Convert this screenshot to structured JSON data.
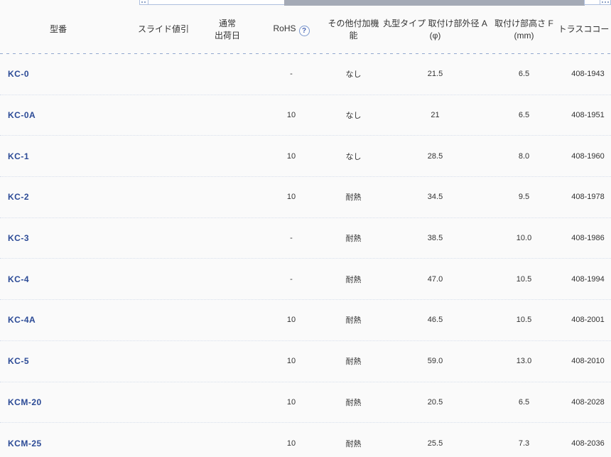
{
  "colors": {
    "background": "#fafafa",
    "model_link_blue": "#2b4a96",
    "header_text": "#333333",
    "cell_text": "#333333",
    "dashed_separator_blue": "#92a8ce",
    "scrollbar_thumb_gray": "#a4aab6",
    "scrollbar_border_blue": "#aebfde",
    "help_icon_blue": "#4a67b5"
  },
  "icons": {
    "rohs_help": "question-mark-circle",
    "left_grip": "grip-dots",
    "right_grip": "grip-dots"
  },
  "scrollbar": {
    "thumb_present": true
  },
  "table": {
    "headers": {
      "model": {
        "line1": "型番",
        "line2": ""
      },
      "slide_discount": {
        "line1": "スライド値引",
        "line2": ""
      },
      "ship_date": {
        "line1": "通常",
        "line2": "出荷日"
      },
      "rohs": {
        "line1": "RoHS",
        "help": "?"
      },
      "extra": {
        "line1": "その他付加機能",
        "line2": ""
      },
      "outer_dia": {
        "line1": "丸型タイプ 取付け部外径 A",
        "line2": "(φ)"
      },
      "mount_height": {
        "line1": "取付け部高さ F",
        "line2": "(mm)"
      },
      "trusco": {
        "line1": "トラスココード",
        "line2": ""
      }
    },
    "rows": [
      {
        "model": "KC-0",
        "slide_discount": "",
        "ship_date": "",
        "rohs": "-",
        "extra": "なし",
        "outer_dia": "21.5",
        "mount_height": "6.5",
        "trusco": "408-1943"
      },
      {
        "model": "KC-0A",
        "slide_discount": "",
        "ship_date": "",
        "rohs": "10",
        "extra": "なし",
        "outer_dia": "21",
        "mount_height": "6.5",
        "trusco": "408-1951"
      },
      {
        "model": "KC-1",
        "slide_discount": "",
        "ship_date": "",
        "rohs": "10",
        "extra": "なし",
        "outer_dia": "28.5",
        "mount_height": "8.0",
        "trusco": "408-1960"
      },
      {
        "model": "KC-2",
        "slide_discount": "",
        "ship_date": "",
        "rohs": "10",
        "extra": "耐熱",
        "outer_dia": "34.5",
        "mount_height": "9.5",
        "trusco": "408-1978"
      },
      {
        "model": "KC-3",
        "slide_discount": "",
        "ship_date": "",
        "rohs": "-",
        "extra": "耐熱",
        "outer_dia": "38.5",
        "mount_height": "10.0",
        "trusco": "408-1986"
      },
      {
        "model": "KC-4",
        "slide_discount": "",
        "ship_date": "",
        "rohs": "-",
        "extra": "耐熱",
        "outer_dia": "47.0",
        "mount_height": "10.5",
        "trusco": "408-1994"
      },
      {
        "model": "KC-4A",
        "slide_discount": "",
        "ship_date": "",
        "rohs": "10",
        "extra": "耐熱",
        "outer_dia": "46.5",
        "mount_height": "10.5",
        "trusco": "408-2001"
      },
      {
        "model": "KC-5",
        "slide_discount": "",
        "ship_date": "",
        "rohs": "10",
        "extra": "耐熱",
        "outer_dia": "59.0",
        "mount_height": "13.0",
        "trusco": "408-2010"
      },
      {
        "model": "KCM-20",
        "slide_discount": "",
        "ship_date": "",
        "rohs": "10",
        "extra": "耐熱",
        "outer_dia": "20.5",
        "mount_height": "6.5",
        "trusco": "408-2028"
      },
      {
        "model": "KCM-25",
        "slide_discount": "",
        "ship_date": "",
        "rohs": "10",
        "extra": "耐熱",
        "outer_dia": "25.5",
        "mount_height": "7.3",
        "trusco": "408-2036"
      }
    ]
  }
}
